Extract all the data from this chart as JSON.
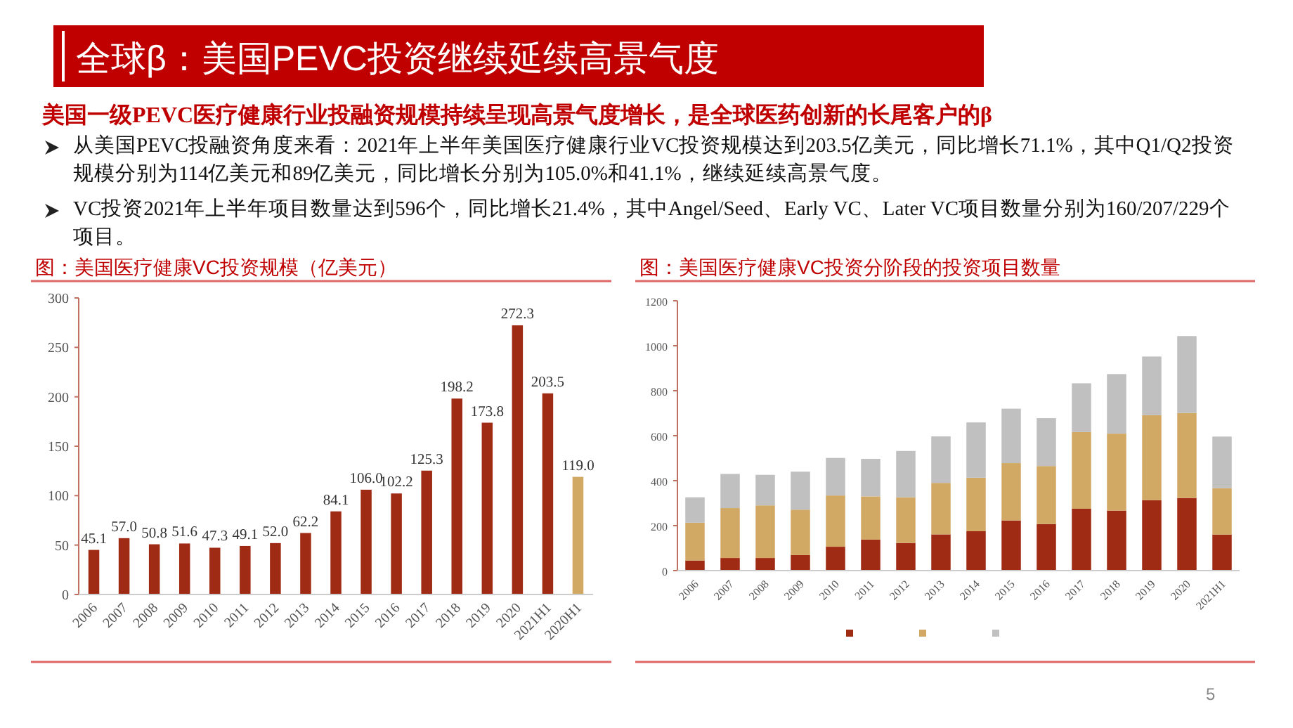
{
  "chart_data": [
    {
      "type": "other",
      "title": "全球β：美国PEVC投资继续延续高景气度",
      "subtitle": "美国一级PEVC医疗健康行业投融资规模持续呈现高景气度增长，是全球医药创新的长尾客户的β",
      "annotations": [
        "从美国PEVC投融资角度来看：2021年上半年美国医疗健康行业VC投资规模达到203.5亿美元，同比增长71.1%，其中Q1/Q2投资规模分别为114亿美元和89亿美元，同比增长分别为105.0%和41.1%，继续延续高景气度。",
        "VC投资2021年上半年项目数量达到596个，同比增长21.4%，其中Angel/Seed、Early VC、Later VC项目数量分别为160/207/229个项目。",
        "5"
      ]
    },
    {
      "type": "bar",
      "title": "图：美国医疗健康VC投资规模（亿美元）",
      "categories": [
        "2006",
        "2007",
        "2008",
        "2009",
        "2010",
        "2011",
        "2012",
        "2013",
        "2014",
        "2015",
        "2016",
        "2017",
        "2018",
        "2019",
        "2020",
        "2021H1",
        "2020H1"
      ],
      "values": [
        45.1,
        57.0,
        50.8,
        51.6,
        47.3,
        49.1,
        52.0,
        62.2,
        84.1,
        106.0,
        102.2,
        125.3,
        198.2,
        173.8,
        272.3,
        203.5,
        119.0
      ],
      "colors": [
        "#a02b14",
        "#a02b14",
        "#a02b14",
        "#a02b14",
        "#a02b14",
        "#a02b14",
        "#a02b14",
        "#a02b14",
        "#a02b14",
        "#a02b14",
        "#a02b14",
        "#a02b14",
        "#a02b14",
        "#a02b14",
        "#a02b14",
        "#a02b14",
        "#d2a865"
      ],
      "value_labels": [
        "45.1",
        "57.0",
        "50.8",
        "51.6",
        "47.3",
        "49.1",
        "52.0",
        "62.2",
        "84.1",
        "106.0",
        "102.2",
        "125.3",
        "198.2",
        "173.8",
        "272.3",
        "203.5",
        "119.0"
      ],
      "ylim": [
        0,
        300
      ],
      "yticks": [
        0,
        50,
        100,
        150,
        200,
        250,
        300
      ],
      "grid": false
    },
    {
      "type": "bar",
      "stacked": true,
      "title": "图：美国医疗健康VC投资分阶段的投资项目数量",
      "categories": [
        "2006",
        "2007",
        "2008",
        "2009",
        "2010",
        "2011",
        "2012",
        "2013",
        "2014",
        "2015",
        "2016",
        "2017",
        "2018",
        "2019",
        "2020",
        "2021H1"
      ],
      "series": [
        {
          "color": "#a02b14",
          "values": [
            45,
            56,
            56,
            69,
            106,
            138,
            123,
            161,
            175,
            223,
            207,
            275,
            267,
            313,
            323,
            160
          ]
        },
        {
          "color": "#d2a865",
          "values": [
            168,
            222,
            234,
            202,
            228,
            192,
            203,
            229,
            238,
            255,
            258,
            341,
            342,
            378,
            378,
            207
          ]
        },
        {
          "color": "#c0c0c0",
          "values": [
            113,
            152,
            136,
            169,
            167,
            167,
            206,
            207,
            246,
            242,
            213,
            217,
            265,
            261,
            342,
            229
          ]
        }
      ],
      "ylim": [
        0,
        1200
      ],
      "yticks": [
        0,
        200,
        400,
        600,
        800,
        1000,
        1200
      ],
      "grid": false
    }
  ]
}
